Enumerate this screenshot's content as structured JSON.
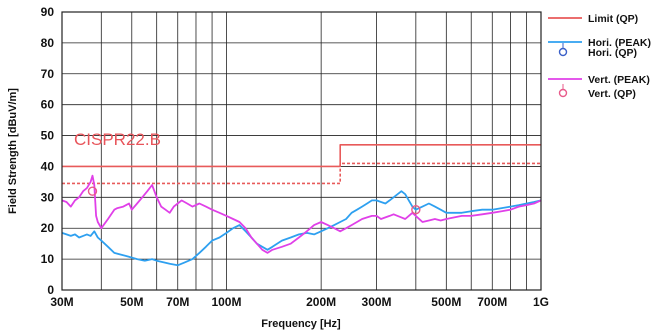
{
  "chart_data": {
    "type": "line",
    "xlabel": "Frequency [Hz]",
    "ylabel": "Field Strength [dBuV/m]",
    "x_scale": "log",
    "xlim": [
      30,
      1000
    ],
    "ylim": [
      0,
      90
    ],
    "grid": true,
    "legend_placement": "right",
    "x_ticks": [
      {
        "label": "30M",
        "value": 30
      },
      {
        "label": "50M",
        "value": 50
      },
      {
        "label": "70M",
        "value": 70
      },
      {
        "label": "100M",
        "value": 100
      },
      {
        "label": "200M",
        "value": 200
      },
      {
        "label": "300M",
        "value": 300
      },
      {
        "label": "500M",
        "value": 500
      },
      {
        "label": "700M",
        "value": 700
      },
      {
        "label": "1G",
        "value": 1000
      }
    ],
    "x_grid": [
      30,
      40,
      50,
      60,
      70,
      80,
      90,
      100,
      200,
      300,
      400,
      500,
      600,
      700,
      800,
      900,
      1000
    ],
    "y_ticks": [
      0,
      10,
      20,
      30,
      40,
      50,
      60,
      70,
      80,
      90
    ],
    "annotation": {
      "text": "CISPR22.B",
      "color": "#e8545a"
    },
    "legend": [
      {
        "label": "Limit (QP)",
        "color": "#e85a5a",
        "kind": "line"
      },
      {
        "label": "Hori. (PEAK)",
        "color": "#2ea0f0",
        "kind": "line"
      },
      {
        "label": "Hori. (QP)",
        "color": "#3a5fc8",
        "kind": "marker"
      },
      {
        "label": "Vert. (PEAK)",
        "color": "#e040e8",
        "kind": "line"
      },
      {
        "label": "Vert. (QP)",
        "color": "#e85a8a",
        "kind": "marker"
      }
    ],
    "series": [
      {
        "id": "limit-qp",
        "color": "#e85a5a",
        "style": "solid",
        "x": [
          30,
          230,
          230,
          1000
        ],
        "y": [
          40,
          40,
          47,
          47
        ]
      },
      {
        "id": "limit-secondary",
        "color": "#e85a5a",
        "style": "dashed",
        "x": [
          30,
          230,
          230,
          1000
        ],
        "y": [
          34.5,
          34.5,
          41,
          41
        ]
      },
      {
        "id": "hori-peak",
        "color": "#2ea0f0",
        "style": "solid",
        "x": [
          30,
          31,
          32,
          33,
          34,
          35,
          36,
          37,
          38,
          39,
          40,
          42,
          44,
          46,
          48,
          50,
          52,
          55,
          58,
          60,
          63,
          66,
          70,
          74,
          78,
          82,
          86,
          90,
          95,
          100,
          105,
          110,
          115,
          120,
          125,
          130,
          135,
          140,
          150,
          160,
          170,
          180,
          190,
          200,
          210,
          220,
          230,
          240,
          250,
          260,
          270,
          280,
          290,
          300,
          310,
          320,
          330,
          340,
          350,
          360,
          370,
          380,
          390,
          400,
          420,
          440,
          460,
          480,
          500,
          530,
          560,
          600,
          650,
          700,
          750,
          800,
          850,
          900,
          950,
          1000
        ],
        "y": [
          18.5,
          18,
          17.5,
          18,
          17,
          17.5,
          18,
          17.5,
          19,
          17,
          16,
          14,
          12,
          11.5,
          11,
          10.5,
          10,
          9.5,
          10,
          9.5,
          9,
          8.5,
          8,
          9,
          10,
          12,
          14,
          16,
          17,
          18.5,
          20,
          21,
          19,
          17,
          15,
          14,
          13,
          14,
          16,
          17,
          18,
          18.5,
          18,
          19,
          20,
          21,
          22,
          23,
          25,
          26,
          27,
          28,
          29,
          29,
          28.5,
          28,
          29,
          30,
          31,
          32,
          31,
          29,
          27,
          26,
          27,
          28,
          27,
          26,
          25,
          25,
          25,
          25.5,
          26,
          26,
          26.5,
          27,
          27.5,
          28,
          28.5,
          29
        ]
      },
      {
        "id": "vert-peak",
        "color": "#e040e8",
        "style": "solid",
        "x": [
          30,
          31,
          32,
          33,
          34,
          35,
          36,
          37,
          37.5,
          38,
          38.5,
          39,
          40,
          42,
          44,
          45,
          47,
          49,
          50,
          52,
          54,
          56,
          58,
          60,
          62,
          64,
          66,
          68,
          70,
          72,
          75,
          78,
          82,
          86,
          90,
          95,
          100,
          105,
          110,
          115,
          120,
          125,
          130,
          135,
          140,
          150,
          160,
          170,
          180,
          190,
          200,
          210,
          220,
          230,
          240,
          250,
          260,
          270,
          280,
          290,
          300,
          310,
          320,
          330,
          340,
          350,
          360,
          370,
          380,
          390,
          400,
          420,
          440,
          460,
          480,
          500,
          530,
          560,
          600,
          650,
          700,
          750,
          800,
          850,
          900,
          950,
          1000
        ],
        "y": [
          29,
          28.5,
          27,
          29,
          30,
          32,
          33,
          35,
          37,
          34,
          24,
          22,
          20,
          23,
          26,
          26.5,
          27,
          28,
          26,
          28,
          30,
          32,
          34,
          30,
          27,
          26,
          25,
          27,
          28,
          29,
          28,
          27,
          28,
          27,
          26,
          25,
          24,
          23,
          22,
          20,
          17,
          15,
          13,
          12,
          13,
          14,
          15,
          17,
          19,
          21,
          22,
          21,
          20,
          19,
          20,
          21,
          22,
          23,
          23.5,
          24,
          24,
          23,
          23.5,
          24,
          24.5,
          24,
          23.5,
          23,
          24,
          25,
          24,
          22,
          22.5,
          23,
          22.5,
          23,
          23.5,
          24,
          24,
          24.5,
          25,
          25.5,
          26,
          27,
          27.5,
          28,
          29
        ]
      }
    ],
    "qp_markers": [
      {
        "series": "hori-qp",
        "color": "#3a5fc8",
        "x": [],
        "y": []
      },
      {
        "series": "vert-qp",
        "color": "#e85a8a",
        "x": [
          37.5,
          400
        ],
        "y": [
          32,
          26
        ]
      }
    ]
  }
}
